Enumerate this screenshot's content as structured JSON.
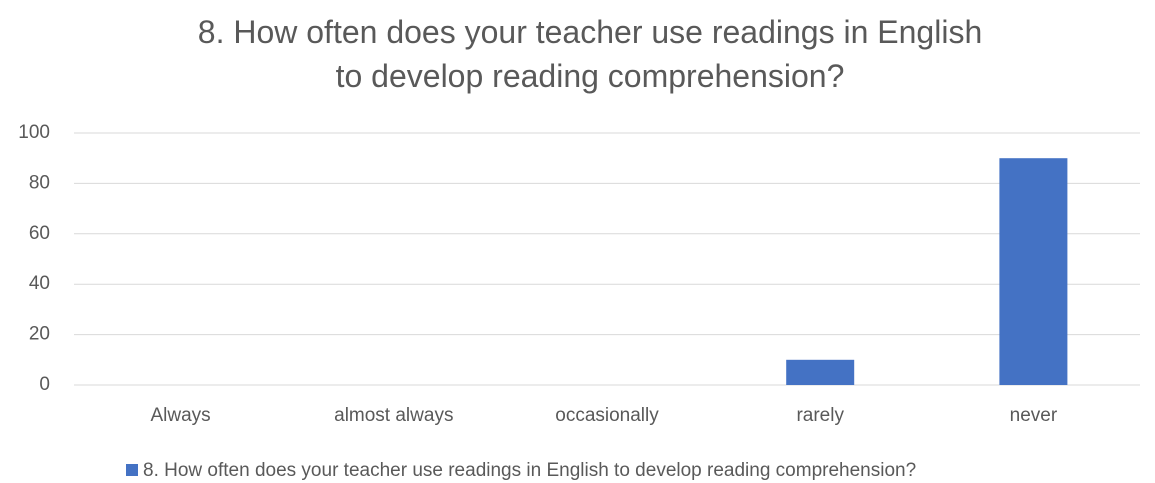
{
  "chart_data": {
    "type": "bar",
    "title": "8. How often does your teacher use readings in English to develop reading comprehension?",
    "categories": [
      "Always",
      "almost always",
      "occasionally",
      "rarely",
      "never"
    ],
    "series": [
      {
        "name": "8. How often does your teacher use readings in English to develop reading comprehension?",
        "color": "#4472c4",
        "values": [
          0,
          0,
          0,
          10,
          90
        ]
      }
    ],
    "ylim": [
      0,
      100
    ],
    "yticks": [
      0,
      20,
      40,
      60,
      80,
      100
    ],
    "grid": true,
    "legend": "bottom"
  }
}
